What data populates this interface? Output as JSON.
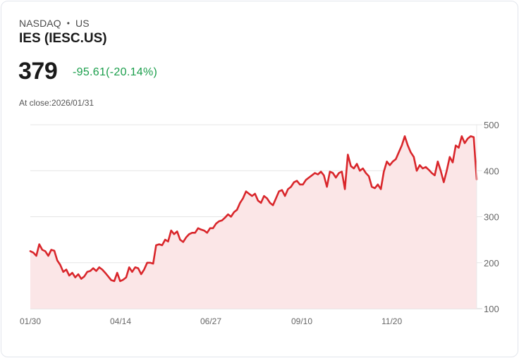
{
  "header": {
    "exchange": "NASDAQ",
    "separator": "•",
    "country": "US",
    "name": "IES (IESC.US)",
    "price": "379",
    "change": "-95.61(-20.14%)",
    "close_label": "At close:2026/01/31"
  },
  "colors": {
    "line": "#d9262b",
    "fill": "#fbe6e7",
    "change_text": "#1a9e4b",
    "grid": "#e5e5e5"
  },
  "chart_data": {
    "type": "area",
    "title": "IES (IESC.US)",
    "xlabel": "",
    "ylabel": "",
    "ylim": [
      100,
      500
    ],
    "yticks": [
      500,
      400,
      300,
      200,
      100
    ],
    "xticks": [
      "01/30",
      "04/14",
      "06/27",
      "09/10",
      "11/20"
    ],
    "grid": true,
    "legend": "none",
    "series": [
      {
        "name": "IESC.US",
        "values": [
          225,
          222,
          215,
          240,
          228,
          225,
          215,
          228,
          226,
          205,
          195,
          180,
          185,
          172,
          178,
          168,
          175,
          165,
          170,
          180,
          182,
          188,
          182,
          190,
          185,
          178,
          170,
          162,
          160,
          178,
          160,
          163,
          168,
          190,
          180,
          190,
          188,
          175,
          185,
          200,
          200,
          198,
          238,
          240,
          238,
          250,
          246,
          270,
          262,
          268,
          250,
          245,
          255,
          262,
          265,
          265,
          275,
          272,
          270,
          265,
          275,
          275,
          285,
          290,
          292,
          298,
          305,
          300,
          310,
          315,
          330,
          340,
          355,
          350,
          345,
          350,
          335,
          330,
          345,
          340,
          330,
          325,
          340,
          355,
          358,
          345,
          360,
          365,
          375,
          378,
          370,
          370,
          380,
          385,
          390,
          395,
          392,
          398,
          390,
          365,
          398,
          395,
          385,
          395,
          398,
          360,
          435,
          410,
          405,
          415,
          400,
          405,
          395,
          388,
          365,
          362,
          370,
          360,
          398,
          420,
          412,
          420,
          425,
          440,
          455,
          475,
          455,
          440,
          430,
          400,
          412,
          405,
          408,
          402,
          395,
          390,
          420,
          400,
          375,
          400,
          430,
          418,
          455,
          450,
          475,
          460,
          470,
          475,
          473,
          381
        ]
      }
    ]
  }
}
